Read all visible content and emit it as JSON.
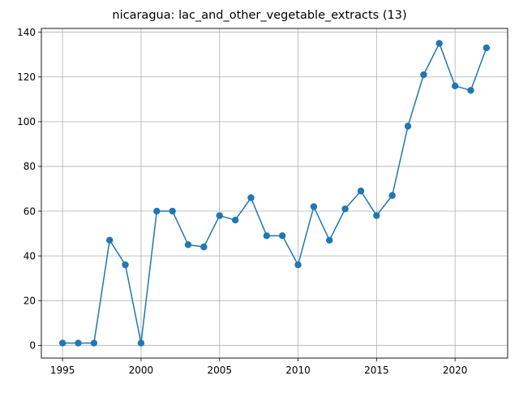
{
  "chart_data": {
    "type": "line",
    "title": "nicaragua: lac_and_other_vegetable_extracts (13)",
    "xlabel": "",
    "ylabel": "",
    "x": [
      1995,
      1996,
      1997,
      1998,
      1999,
      2000,
      2001,
      2002,
      2003,
      2004,
      2005,
      2006,
      2007,
      2008,
      2009,
      2010,
      2011,
      2012,
      2013,
      2014,
      2015,
      2016,
      2017,
      2018,
      2019,
      2020,
      2021,
      2022
    ],
    "series": [
      {
        "values": [
          1,
          1,
          1,
          47,
          36,
          1,
          60,
          60,
          45,
          44,
          58,
          56,
          66,
          49,
          49,
          36,
          62,
          47,
          61,
          69,
          58,
          67,
          98,
          121,
          135,
          116,
          114,
          133
        ]
      }
    ],
    "xlim": [
      1993.65,
      2023.35
    ],
    "ylim": [
      -5.7,
      141.7
    ],
    "xticks": [
      1995,
      2000,
      2005,
      2010,
      2015,
      2020
    ],
    "yticks": [
      0,
      20,
      40,
      60,
      80,
      100,
      120,
      140
    ],
    "grid": true,
    "marker": "circle",
    "colors": {
      "line": "#1f77b4",
      "grid": "#b0b0b0",
      "axes": "#000000"
    }
  }
}
